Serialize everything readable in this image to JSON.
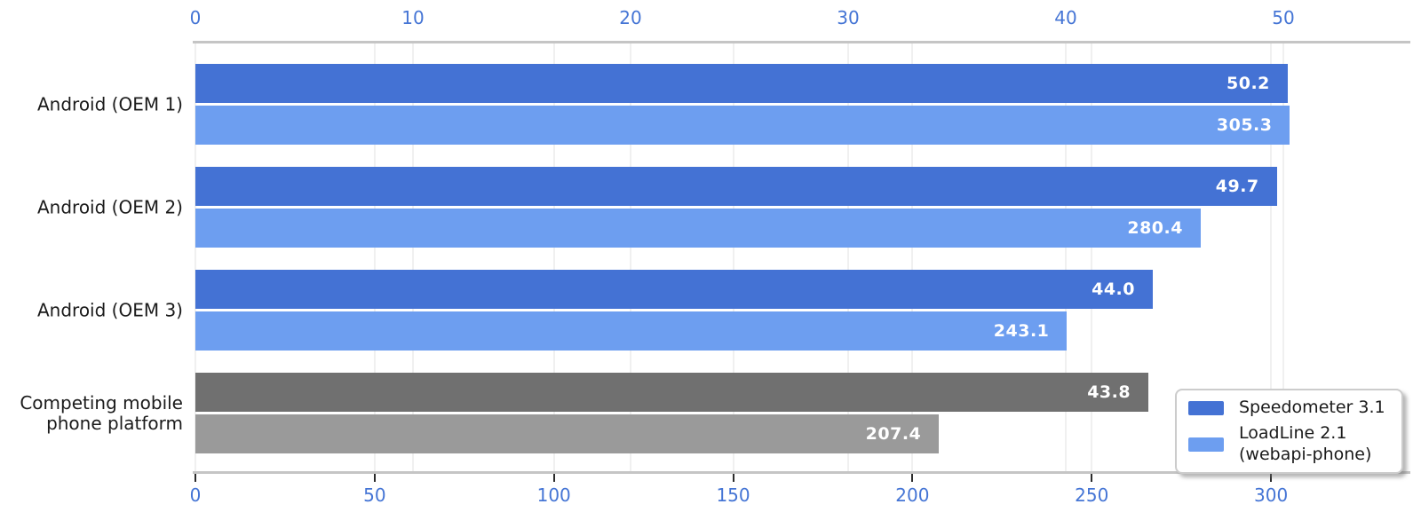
{
  "chart_data": {
    "type": "bar",
    "orientation": "horizontal",
    "grouping": "grouped-dual-axis",
    "title": "",
    "categories": [
      "Android (OEM 1)",
      "Android (OEM 2)",
      "Android (OEM 3)",
      "Competing mobile\nphone platform"
    ],
    "series": [
      {
        "name": "Speedometer 3.1",
        "axis": "top",
        "values": [
          50.2,
          49.7,
          44.0,
          43.8
        ],
        "bar_colors": [
          "#4472d4",
          "#4472d4",
          "#4472d4",
          "#707070"
        ],
        "legend_color": "#4472d4"
      },
      {
        "name": "LoadLine 2.1\n(webapi-phone)",
        "axis": "bottom",
        "values": [
          305.3,
          280.4,
          243.1,
          207.4
        ],
        "bar_colors": [
          "#6d9ef0",
          "#6d9ef0",
          "#6d9ef0",
          "#9a9a9a"
        ],
        "legend_color": "#6d9ef0"
      }
    ],
    "top_axis": {
      "ticks": [
        0,
        10,
        20,
        30,
        40,
        50
      ],
      "lim": [
        0,
        55.8
      ]
    },
    "bottom_axis": {
      "ticks": [
        0,
        50,
        100,
        150,
        200,
        250,
        300
      ],
      "lim": [
        0,
        338.8
      ]
    },
    "value_label_decimals": 1,
    "legend_position": "lower right",
    "grid": true,
    "colors": {
      "tick_label": "#4575d5",
      "axis_line": "#c5c5c5",
      "gridline": "#f0f0f0",
      "tick_mark": "#2b2b2b",
      "value_label": "#ffffff",
      "category_label": "#1b1b1b"
    }
  }
}
